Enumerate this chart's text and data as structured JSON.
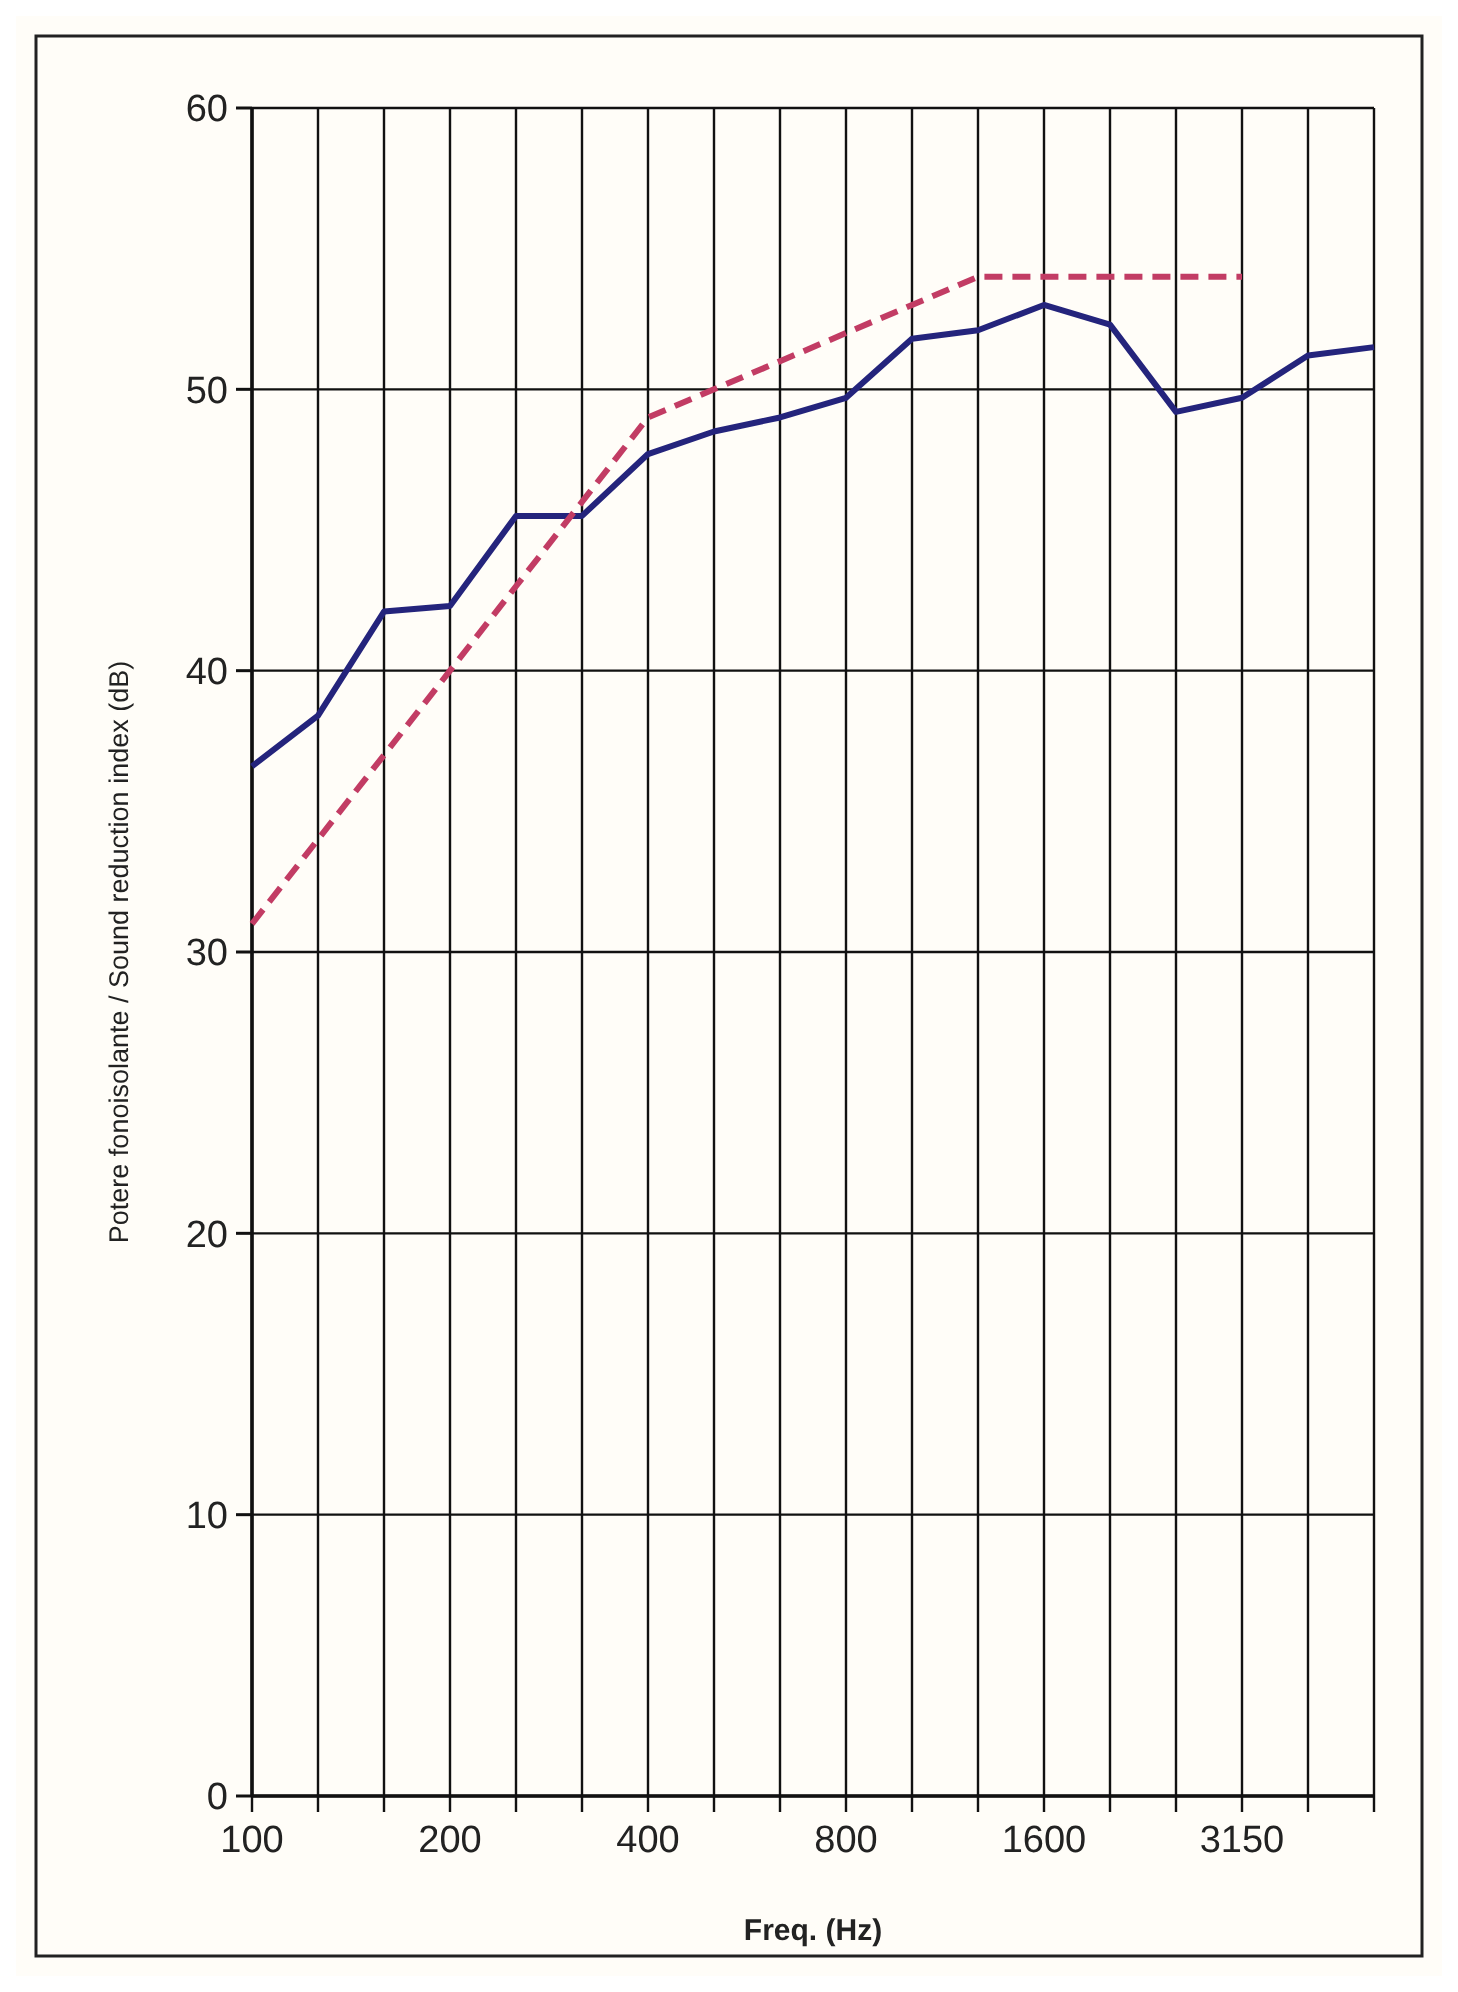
{
  "chart_data": {
    "type": "line",
    "xlabel": "Freq. (Hz)",
    "ylabel": "Potere fonoisolante / Sound reduction index (dB)",
    "categories": [
      "100",
      null,
      null,
      "200",
      null,
      null,
      "400",
      null,
      null,
      "800",
      null,
      null,
      "1600",
      null,
      null,
      "3150",
      null,
      null
    ],
    "ylim": [
      0,
      60
    ],
    "yticks": [
      0,
      10,
      20,
      30,
      40,
      50,
      60
    ],
    "grid": true,
    "series": [
      {
        "color": "#24247c",
        "line_style": "solid",
        "values": [
          36.6,
          38.4,
          42.1,
          42.3,
          45.5,
          45.5,
          47.7,
          48.5,
          49,
          49.7,
          51.8,
          52.1,
          53,
          52.3,
          49.2,
          49.7,
          51.2,
          51.5
        ]
      },
      {
        "color": "#c23c64",
        "line_style": "dashed",
        "values": [
          31,
          34,
          37,
          40,
          43,
          46,
          49,
          50,
          51,
          52,
          53,
          54,
          54,
          54,
          54,
          54,
          null,
          null
        ]
      }
    ]
  }
}
